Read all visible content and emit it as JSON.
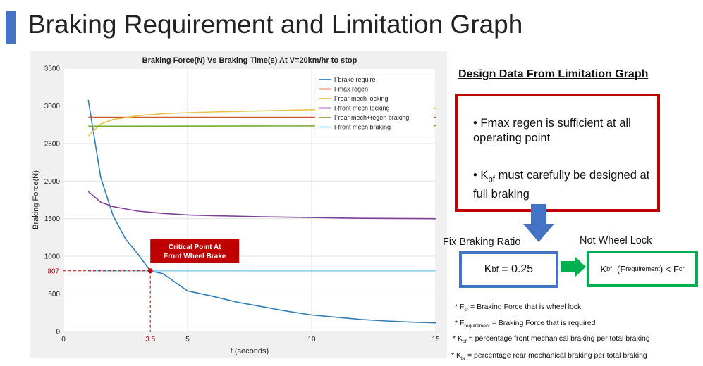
{
  "slide": {
    "title": "Braking Requirement and Limitation Graph"
  },
  "chart_data": {
    "type": "line",
    "title": "Braking Force(N) Vs Braking Time(s) At V=20km/hr to stop",
    "xlabel": "t (seconds)",
    "ylabel": "Braking Force(N)",
    "xlim": [
      0,
      15
    ],
    "ylim": [
      0,
      3500
    ],
    "xticks": [
      "0",
      "5",
      "10",
      "15"
    ],
    "yticks": [
      "0",
      "500",
      "1000",
      "1500",
      "2000",
      "2500",
      "3000",
      "3500"
    ],
    "grid": true,
    "legend_position": "top-right",
    "series": [
      {
        "name": "Fbrake require",
        "color": "#2e7cb8",
        "x": [
          1,
          1.5,
          2,
          2.5,
          3,
          3.5,
          4,
          5,
          6,
          7,
          8,
          9,
          10,
          11,
          12,
          13,
          14,
          15
        ],
        "y": [
          3080,
          2050,
          1540,
          1230,
          1030,
          807,
          770,
          540,
          470,
          390,
          330,
          270,
          220,
          190,
          160,
          140,
          125,
          115
        ]
      },
      {
        "name": "Fmax regen",
        "color": "#d05a2a",
        "x": [
          1,
          15
        ],
        "y": [
          2850,
          2850
        ]
      },
      {
        "name": "Frear mech locking",
        "color": "#e8c44a",
        "x": [
          1,
          1.5,
          2,
          3,
          4,
          5,
          6,
          8,
          10,
          12,
          15
        ],
        "y": [
          2600,
          2760,
          2820,
          2870,
          2895,
          2910,
          2920,
          2935,
          2950,
          2960,
          2965
        ]
      },
      {
        "name": "Ffront mech locking",
        "color": "#7e3f98",
        "x": [
          1,
          1.5,
          2,
          3,
          4,
          5,
          6,
          8,
          10,
          12,
          15
        ],
        "y": [
          1860,
          1720,
          1660,
          1600,
          1570,
          1550,
          1540,
          1525,
          1515,
          1505,
          1500
        ]
      },
      {
        "name": "Frear mech+regen braking",
        "color": "#77ac30",
        "x": [
          1,
          15
        ],
        "y": [
          2730,
          2735
        ]
      },
      {
        "name": "Ffront mech braking",
        "color": "#8fd3ee",
        "x": [
          1,
          15
        ],
        "y": [
          807,
          807
        ]
      }
    ],
    "annotations": {
      "critical_label": "Critical Point At Front Wheel Brake",
      "critical_x_label": "3.5",
      "critical_y_label": "807",
      "critical_point": {
        "x": 3.5,
        "y": 807
      }
    }
  },
  "design": {
    "title": "Design Data From Limitation Graph",
    "bullet1": "• Fmax regen is sufficient at all operating point",
    "bullet2_pre": "• K",
    "bullet2_sub": "bf",
    "bullet2_post": " must carefully be designed at full braking",
    "fix_label": "Fix Braking Ratio",
    "not_lock_label": "Not Wheel Lock",
    "kbf_main": "K",
    "kbf_sub": "bf",
    "kbf_value": "= 0.25",
    "cond_k": "K",
    "cond_k_sub": "bf",
    "cond_open": "(F",
    "cond_req_sub": "requirement",
    "cond_close": ") < F",
    "cond_cr_sub": "cr"
  },
  "notes": {
    "n1_pre": "* F",
    "n1_sub": "cr",
    "n1_post": " = Braking Force that is wheel lock",
    "n2_pre": "* F",
    "n2_sub": "requirement",
    "n2_post": " = Braking Force that is required",
    "n3_pre": "* K",
    "n3_sub": "bf",
    "n3_post": " = percentage front mechanical braking per total braking",
    "n4_pre": "* K",
    "n4_sub": "br",
    "n4_post": " = percentage rear mechanical braking per total braking"
  },
  "colors": {
    "accent": "#4472c4",
    "red_box": "#c00000",
    "green_box": "#00b050",
    "critical": "#c00000"
  }
}
